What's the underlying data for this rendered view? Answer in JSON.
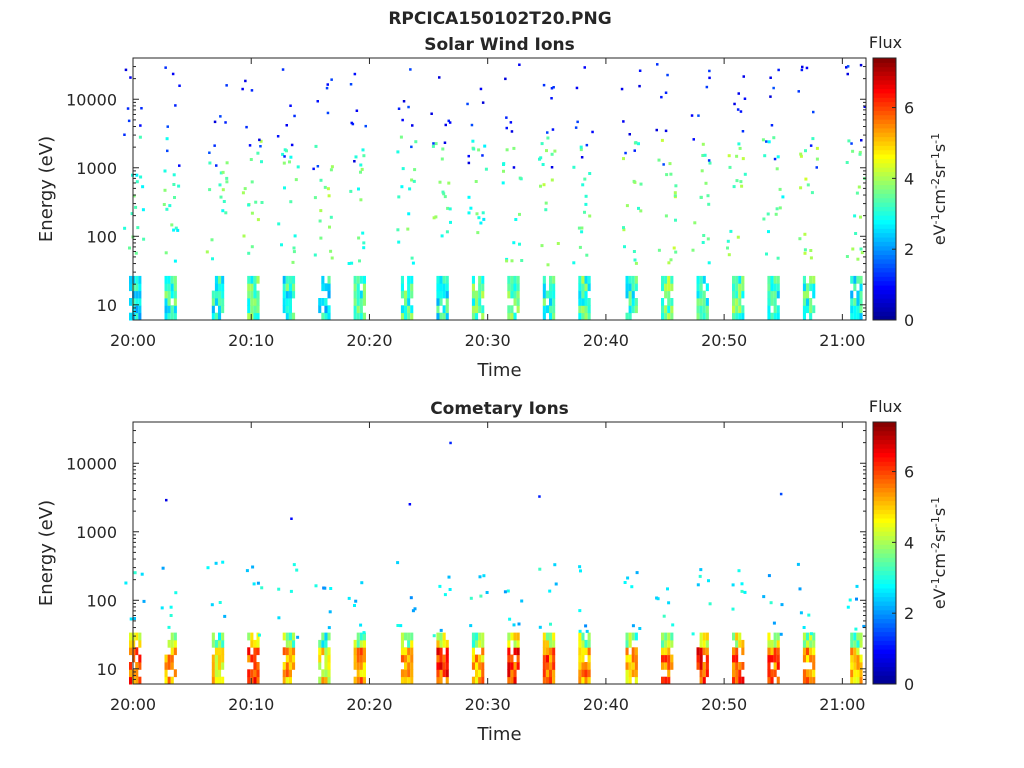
{
  "figure_title": "RPCICA150102T20.PNG",
  "colorbar": {
    "title": "Flux",
    "label": "eV-1cm-2sr-1s-1",
    "range": [
      0,
      7.4
    ],
    "ticks": [
      "0",
      "2",
      "4",
      "6"
    ],
    "colormap": [
      "#00008f",
      "#0000ff",
      "#0080ff",
      "#00ffff",
      "#80ff80",
      "#ffff00",
      "#ff8000",
      "#ff0000",
      "#800000"
    ]
  },
  "chart_data": [
    {
      "type": "heatmap",
      "title": "Solar Wind Ions",
      "xlabel": "Time",
      "ylabel": "Energy (eV)",
      "yscale": "log",
      "ylim": [
        6,
        40000
      ],
      "xlim": [
        "20:00",
        "21:02"
      ],
      "xticks": [
        "20:00",
        "20:10",
        "20:20",
        "20:30",
        "20:40",
        "20:50",
        "21:00"
      ],
      "yticks": [
        "10",
        "100",
        "1000",
        "10000"
      ],
      "colorbar": "Flux",
      "bursts": [
        {
          "t": "20:00",
          "low_flux": 3.6,
          "mid_flux": 3.3
        },
        {
          "t": "20:03",
          "low_flux": 3.9,
          "mid_flux": 3.2
        },
        {
          "t": "20:07",
          "low_flux": 3.7,
          "mid_flux": 3.4
        },
        {
          "t": "20:10",
          "low_flux": 4.1,
          "mid_flux": 3.5
        },
        {
          "t": "20:13",
          "low_flux": 3.8,
          "mid_flux": 3.3
        },
        {
          "t": "20:16",
          "low_flux": 3.6,
          "mid_flux": 3.6
        },
        {
          "t": "20:19",
          "low_flux": 3.9,
          "mid_flux": 3.4
        },
        {
          "t": "20:23",
          "low_flux": 4.0,
          "mid_flux": 3.3
        },
        {
          "t": "20:26",
          "low_flux": 3.7,
          "mid_flux": 3.5
        },
        {
          "t": "20:29",
          "low_flux": 4.2,
          "mid_flux": 3.2
        },
        {
          "t": "20:32",
          "low_flux": 4.3,
          "mid_flux": 3.4
        },
        {
          "t": "20:35",
          "low_flux": 3.9,
          "mid_flux": 3.6
        },
        {
          "t": "20:38",
          "low_flux": 4.1,
          "mid_flux": 3.3
        },
        {
          "t": "20:42",
          "low_flux": 3.8,
          "mid_flux": 3.5
        },
        {
          "t": "20:45",
          "low_flux": 4.3,
          "mid_flux": 3.8
        },
        {
          "t": "20:48",
          "low_flux": 4.0,
          "mid_flux": 3.4
        },
        {
          "t": "20:51",
          "low_flux": 4.2,
          "mid_flux": 3.6
        },
        {
          "t": "20:54",
          "low_flux": 3.7,
          "mid_flux": 3.3
        },
        {
          "t": "20:57",
          "low_flux": 4.0,
          "mid_flux": 3.7
        },
        {
          "t": "21:01",
          "low_flux": 3.6,
          "mid_flux": 3.4
        }
      ]
    },
    {
      "type": "heatmap",
      "title": "Cometary Ions",
      "xlabel": "Time",
      "ylabel": "Energy (eV)",
      "yscale": "log",
      "ylim": [
        6,
        40000
      ],
      "xlim": [
        "20:00",
        "21:02"
      ],
      "xticks": [
        "20:00",
        "20:10",
        "20:20",
        "20:30",
        "20:40",
        "20:50",
        "21:00"
      ],
      "yticks": [
        "10",
        "100",
        "1000",
        "10000"
      ],
      "colorbar": "Flux",
      "bursts": [
        {
          "t": "20:00",
          "low_flux": 6.6,
          "mid_flux": 2.6
        },
        {
          "t": "20:03",
          "low_flux": 6.2,
          "mid_flux": 2.5
        },
        {
          "t": "20:07",
          "low_flux": 5.6,
          "mid_flux": 2.4
        },
        {
          "t": "20:10",
          "low_flux": 6.7,
          "mid_flux": 2.7
        },
        {
          "t": "20:13",
          "low_flux": 6.0,
          "mid_flux": 2.5
        },
        {
          "t": "20:16",
          "low_flux": 5.5,
          "mid_flux": 2.4
        },
        {
          "t": "20:19",
          "low_flux": 6.1,
          "mid_flux": 2.6
        },
        {
          "t": "20:23",
          "low_flux": 6.3,
          "mid_flux": 2.5
        },
        {
          "t": "20:26",
          "low_flux": 6.8,
          "mid_flux": 2.6
        },
        {
          "t": "20:29",
          "low_flux": 6.0,
          "mid_flux": 2.7
        },
        {
          "t": "20:32",
          "low_flux": 6.9,
          "mid_flux": 2.5
        },
        {
          "t": "20:35",
          "low_flux": 6.6,
          "mid_flux": 2.6
        },
        {
          "t": "20:38",
          "low_flux": 6.2,
          "mid_flux": 2.4
        },
        {
          "t": "20:42",
          "low_flux": 5.9,
          "mid_flux": 2.5
        },
        {
          "t": "20:45",
          "low_flux": 6.4,
          "mid_flux": 2.8
        },
        {
          "t": "20:48",
          "low_flux": 6.9,
          "mid_flux": 2.9
        },
        {
          "t": "20:51",
          "low_flux": 6.7,
          "mid_flux": 2.7
        },
        {
          "t": "20:54",
          "low_flux": 6.5,
          "mid_flux": 2.6
        },
        {
          "t": "20:57",
          "low_flux": 6.1,
          "mid_flux": 2.5
        },
        {
          "t": "21:01",
          "low_flux": 5.8,
          "mid_flux": 2.4
        }
      ]
    }
  ]
}
